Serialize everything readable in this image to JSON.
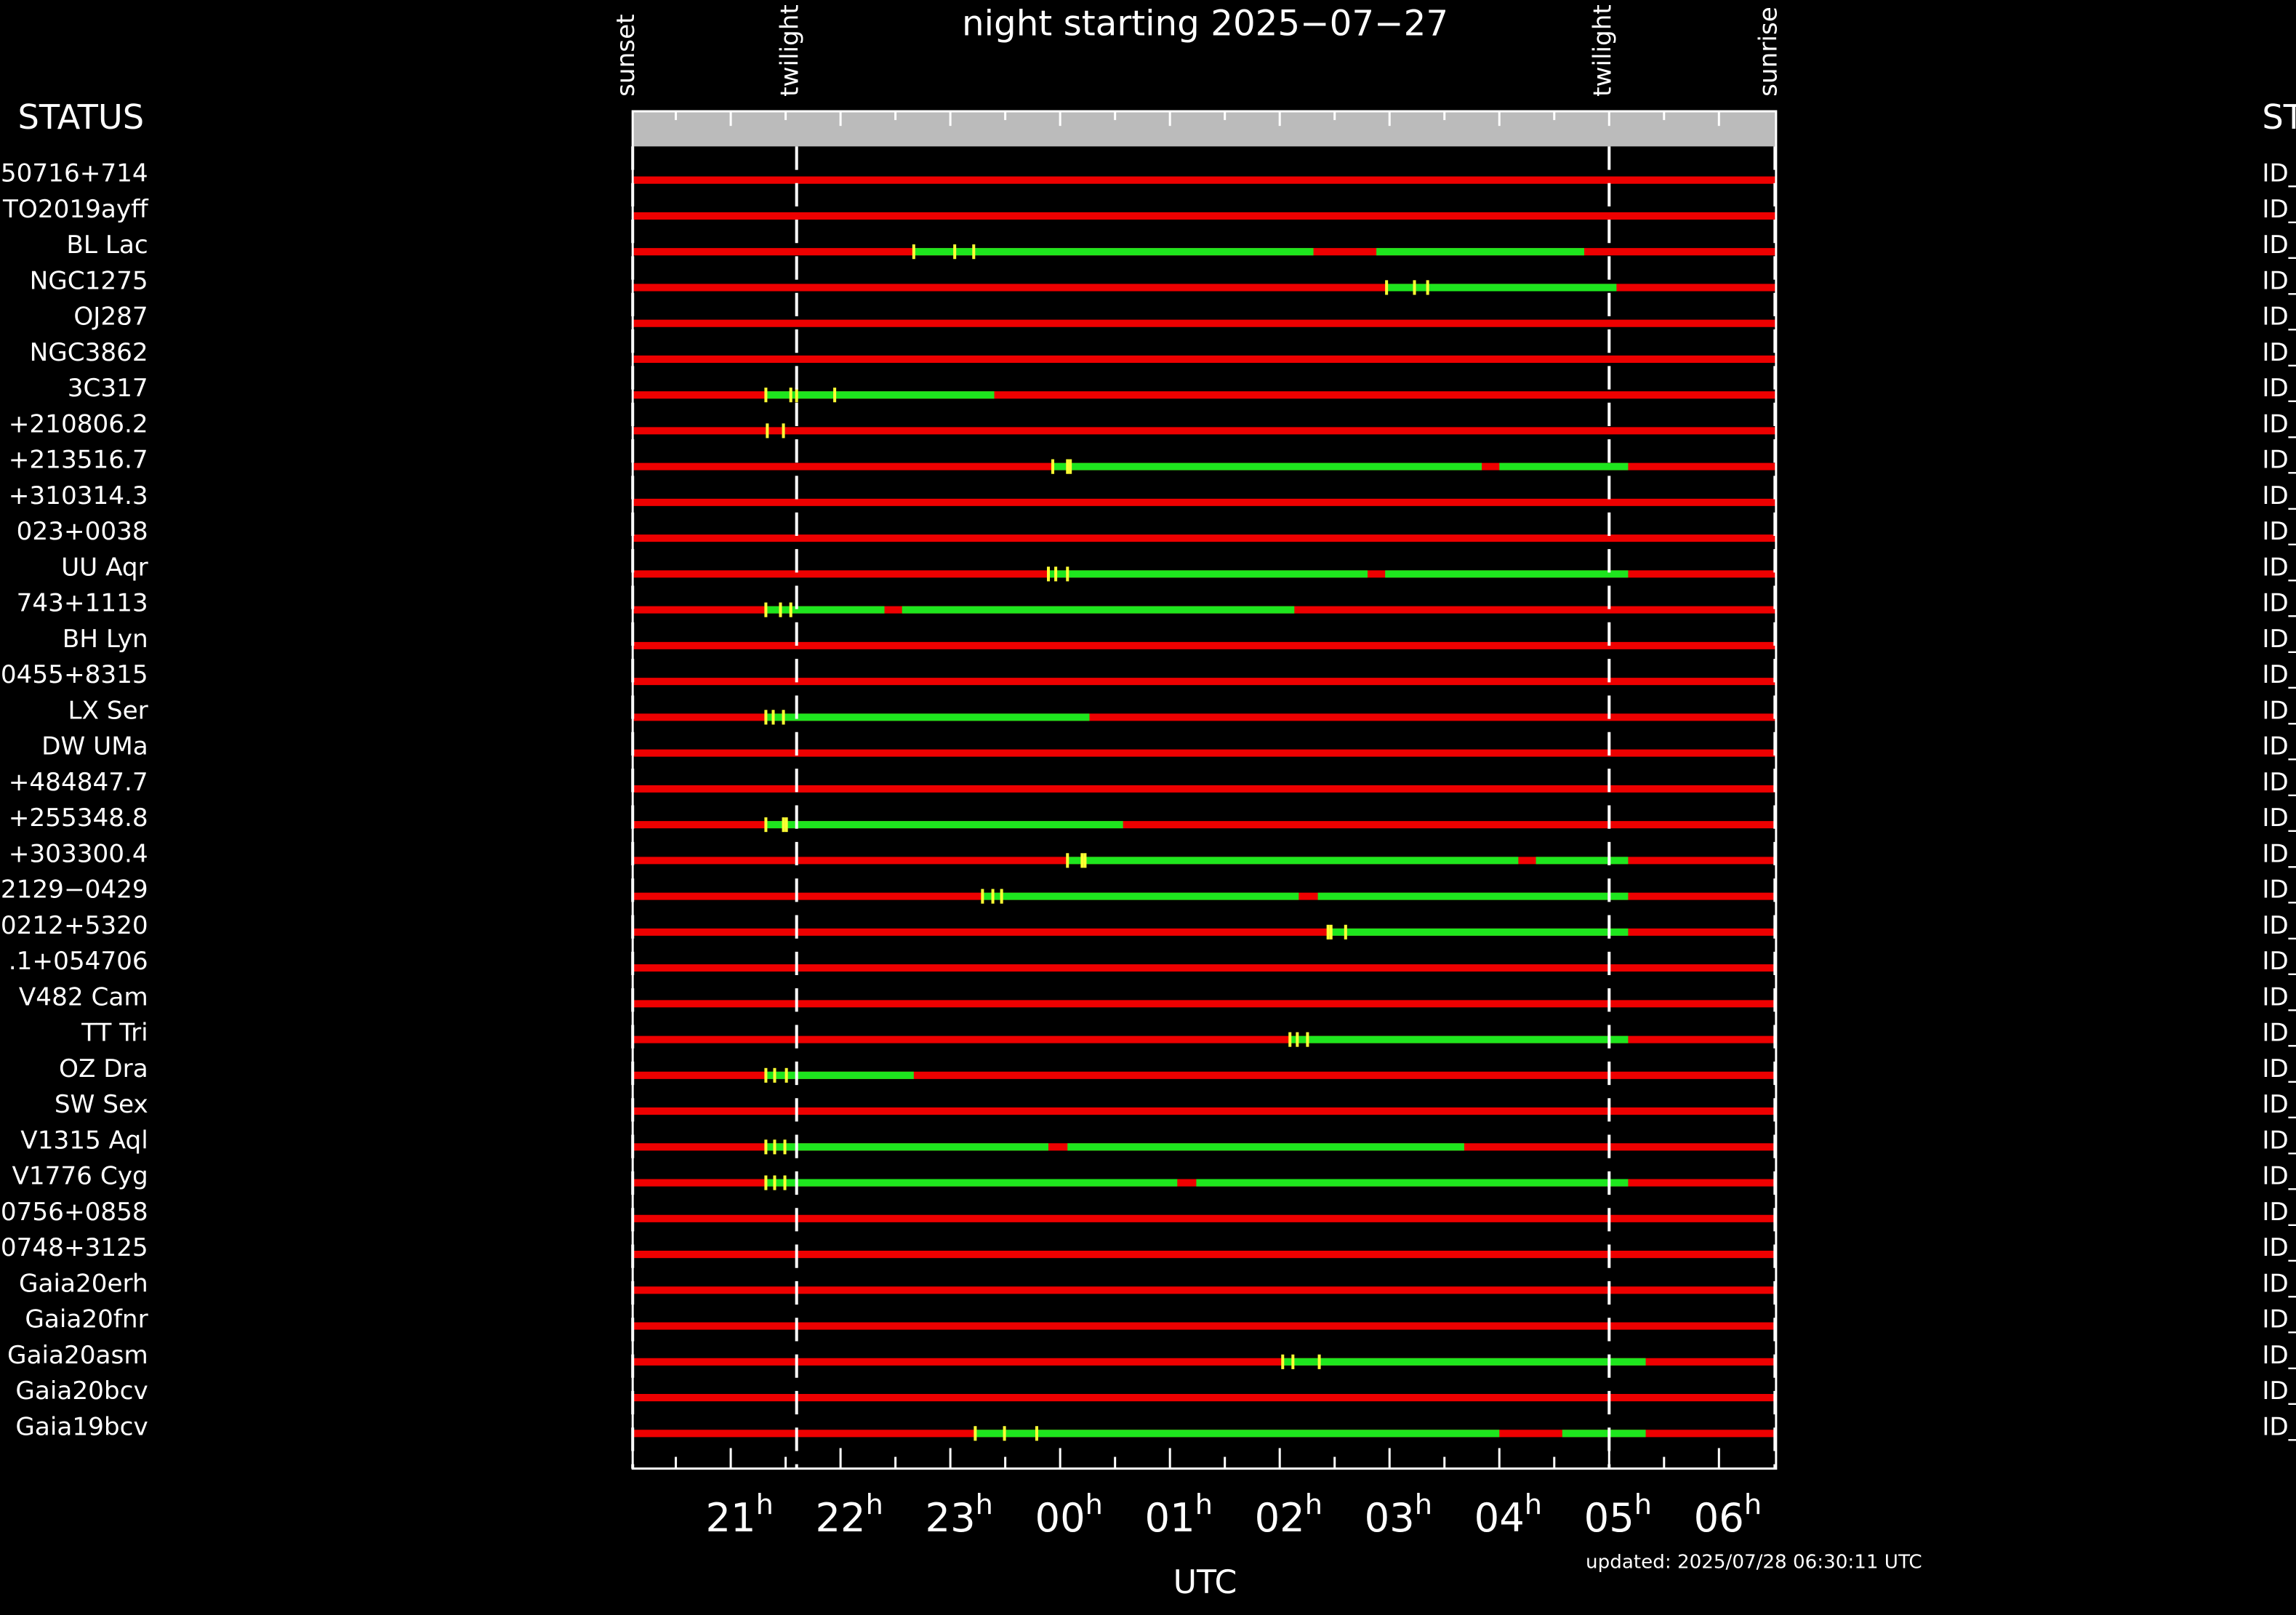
{
  "chart_data": {
    "type": "timeline",
    "title": "night starting 2025−07−27",
    "xlabel": "UTC",
    "updated": "updated: 2025/07/28 06:30:11 UTC",
    "status_header": "STATUS",
    "status_header_right": "ST",
    "xlim": [
      20.107,
      30.52
    ],
    "xticks": [
      21,
      22,
      23,
      {
        "value": 24,
        "label": "00"
      },
      {
        "value": 25,
        "label": "01"
      },
      {
        "value": 26,
        "label": "02"
      },
      {
        "value": 27,
        "label": "03"
      },
      {
        "value": 28,
        "label": "04"
      },
      {
        "value": 29,
        "label": "05"
      },
      {
        "value": 30,
        "label": "06"
      }
    ],
    "tick_unit": "h",
    "xminor": [
      20.5,
      21.5,
      22.5,
      23.5,
      24.5,
      25.5,
      26.5,
      27.5,
      28.5,
      29.5
    ],
    "events": [
      {
        "name": "sunset",
        "x": 20.107
      },
      {
        "name": "twilight",
        "x": 21.6
      },
      {
        "name": "twilight",
        "x": 29.0
      },
      {
        "name": "sunrise",
        "x": 30.51
      }
    ],
    "colors": {
      "base": "#ee0000",
      "window": "#1ee61e",
      "mark": "#ffff33"
    },
    "rows": [
      {
        "name": "50716+714",
        "id": "ID_",
        "green": [],
        "marks": []
      },
      {
        "name": "TO2019ayff",
        "id": "ID_",
        "green": [],
        "marks": []
      },
      {
        "name": "BL Lac",
        "id": "ID_",
        "green": [
          [
            22.667,
            26.307
          ],
          [
            26.88,
            28.773
          ]
        ],
        "marks": [
          22.667,
          23.04,
          23.213
        ]
      },
      {
        "name": "NGC1275",
        "id": "ID_",
        "green": [
          [
            26.973,
            29.067
          ]
        ],
        "marks": [
          26.973,
          27.227,
          27.347
        ]
      },
      {
        "name": "OJ287",
        "id": "ID_",
        "green": [],
        "marks": []
      },
      {
        "name": "NGC3862",
        "id": "ID_",
        "green": [],
        "marks": []
      },
      {
        "name": "3C317",
        "id": "ID_",
        "green": [
          [
            21.32,
            23.4
          ]
        ],
        "marks": [
          21.32,
          21.547,
          21.6,
          21.947
        ]
      },
      {
        "name": "+210806.2",
        "id": "ID_",
        "green": [],
        "marks": [
          21.333,
          21.48
        ]
      },
      {
        "name": "+213516.7",
        "id": "ID_",
        "green": [
          [
            23.933,
            27.84
          ],
          [
            28.0,
            29.173
          ]
        ],
        "marks": [
          23.933,
          24.067,
          24.093
        ]
      },
      {
        "name": "+310314.3",
        "id": "ID_",
        "green": [],
        "marks": []
      },
      {
        "name": "023+0038",
        "id": "ID_",
        "green": [],
        "marks": []
      },
      {
        "name": "UU Aqr",
        "id": "ID_",
        "green": [
          [
            23.893,
            26.8
          ],
          [
            26.96,
            29.173
          ]
        ],
        "marks": [
          23.893,
          23.96,
          24.067
        ]
      },
      {
        "name": "743+1113",
        "id": "ID_",
        "green": [
          [
            21.32,
            22.4
          ],
          [
            22.56,
            26.133
          ]
        ],
        "marks": [
          21.32,
          21.453,
          21.547
        ]
      },
      {
        "name": "BH Lyn",
        "id": "ID_",
        "green": [],
        "marks": []
      },
      {
        "name": "0455+8315",
        "id": "ID_",
        "green": [],
        "marks": []
      },
      {
        "name": "LX Ser",
        "id": "ID_",
        "green": [
          [
            21.32,
            24.267
          ]
        ],
        "marks": [
          21.32,
          21.387,
          21.48
        ]
      },
      {
        "name": "DW UMa",
        "id": "ID_",
        "green": [],
        "marks": []
      },
      {
        "name": "+484847.7",
        "id": "ID_",
        "green": [],
        "marks": []
      },
      {
        "name": "+255348.8",
        "id": "ID_",
        "green": [
          [
            21.32,
            24.573
          ]
        ],
        "marks": [
          21.32,
          21.48,
          21.507
        ]
      },
      {
        "name": "+303300.4",
        "id": "ID_",
        "green": [
          [
            24.067,
            28.173
          ],
          [
            28.333,
            29.173
          ]
        ],
        "marks": [
          24.067,
          24.2,
          24.227
        ]
      },
      {
        "name": "2129−0429",
        "id": "ID_",
        "green": [
          [
            23.293,
            26.173
          ],
          [
            26.347,
            29.173
          ]
        ],
        "marks": [
          23.293,
          23.387,
          23.467
        ]
      },
      {
        "name": "0212+5320",
        "id": "ID_",
        "green": [
          [
            26.44,
            29.173
          ]
        ],
        "marks": [
          26.44,
          26.467,
          26.6
        ]
      },
      {
        "name": ".1+054706",
        "id": "ID_",
        "green": [],
        "marks": []
      },
      {
        "name": "V482 Cam",
        "id": "ID_",
        "green": [],
        "marks": []
      },
      {
        "name": "TT Tri",
        "id": "ID_",
        "green": [
          [
            26.093,
            29.173
          ]
        ],
        "marks": [
          26.093,
          26.16,
          26.253
        ]
      },
      {
        "name": "OZ Dra",
        "id": "ID_",
        "green": [
          [
            21.32,
            22.667
          ]
        ],
        "marks": [
          21.32,
          21.4,
          21.507
        ]
      },
      {
        "name": "SW Sex",
        "id": "ID_",
        "green": [],
        "marks": []
      },
      {
        "name": "V1315 Aql",
        "id": "ID_",
        "green": [
          [
            21.32,
            23.893
          ],
          [
            24.067,
            27.68
          ]
        ],
        "marks": [
          21.32,
          21.4,
          21.493
        ]
      },
      {
        "name": "V1776 Cyg",
        "id": "ID_",
        "green": [
          [
            21.32,
            25.067
          ],
          [
            25.24,
            29.173
          ]
        ],
        "marks": [
          21.32,
          21.4,
          21.493
        ]
      },
      {
        "name": "0756+0858",
        "id": "ID_",
        "green": [],
        "marks": []
      },
      {
        "name": "0748+3125",
        "id": "ID_",
        "green": [],
        "marks": []
      },
      {
        "name": "Gaia20erh",
        "id": "ID_",
        "green": [],
        "marks": []
      },
      {
        "name": "Gaia20fnr",
        "id": "ID_",
        "green": [],
        "marks": []
      },
      {
        "name": "Gaia20asm",
        "id": "ID_",
        "green": [
          [
            26.027,
            29.333
          ]
        ],
        "marks": [
          26.027,
          26.12,
          26.36
        ]
      },
      {
        "name": "Gaia20bcv",
        "id": "ID_",
        "green": [],
        "marks": []
      },
      {
        "name": "Gaia19bcv",
        "id": "ID_",
        "green": [
          [
            23.227,
            28.0
          ],
          [
            28.573,
            29.333
          ]
        ],
        "marks": [
          23.227,
          23.493,
          23.787
        ]
      }
    ]
  }
}
